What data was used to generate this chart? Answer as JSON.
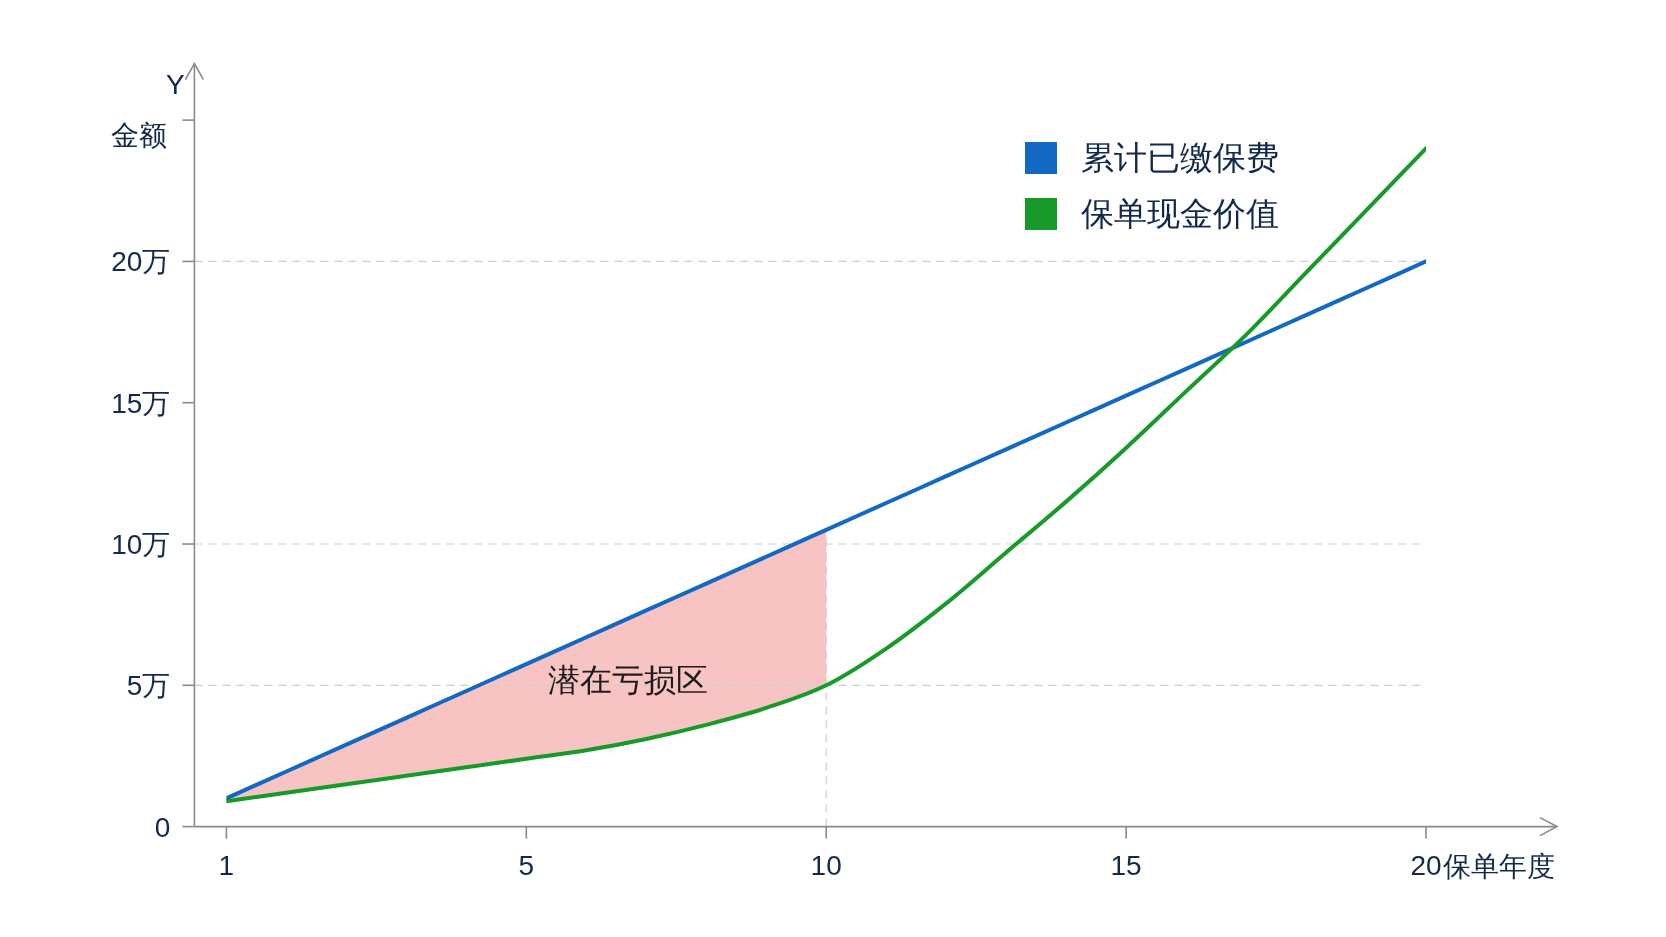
{
  "chart_data": {
    "type": "line",
    "categories": [
      "1",
      null,
      null,
      null,
      null,
      "5",
      null,
      null,
      null,
      null,
      "10",
      null,
      null,
      null,
      null,
      "15",
      null,
      null,
      null,
      null,
      "20"
    ],
    "series": [
      {
        "name": "累计已缴保费",
        "color": "#1268c3",
        "values": [
          1,
          1.95,
          2.9,
          3.85,
          4.8,
          5.75,
          6.7,
          7.65,
          8.6,
          9.55,
          10.5,
          11.45,
          12.4,
          13.35,
          14.3,
          15.25,
          16.2,
          17.15,
          18.1,
          19.05,
          20
        ]
      },
      {
        "name": "保单现金价值",
        "color": "#189a2a",
        "values": [
          0.9,
          1.2,
          1.5,
          1.8,
          2.1,
          2.4,
          2.7,
          3.1,
          3.6,
          4.2,
          5.0,
          6.3,
          7.9,
          9.7,
          11.5,
          13.4,
          15.4,
          17.4,
          19.6,
          21.8,
          24.0
        ]
      }
    ],
    "xlabel": "保单年度",
    "ylabel": "金额",
    "annotations": [
      "Y",
      "潜在亏损区"
    ],
    "ylim": [
      0,
      27
    ],
    "yticks": [
      0,
      {
        "value": 5,
        "label": "5万"
      },
      {
        "value": 10,
        "label": "10万"
      },
      {
        "value": 15,
        "label": "15万"
      },
      {
        "value": 20,
        "label": "20万"
      },
      {
        "value": 25,
        "label": null
      }
    ],
    "ref_lines": [
      {
        "axis": "y",
        "value": 5,
        "color": "#cdcdcd",
        "line_style": "dashed"
      },
      {
        "axis": "y",
        "value": 10,
        "color": "#cdcdcd",
        "line_style": "dashed"
      },
      {
        "axis": "y",
        "value": 20,
        "color": "#cdcdcd",
        "line_style": "dashed"
      },
      {
        "axis": "x",
        "value": "10",
        "color": "#cdcdcd",
        "line_style": "dashed"
      }
    ],
    "legend": "top right"
  }
}
